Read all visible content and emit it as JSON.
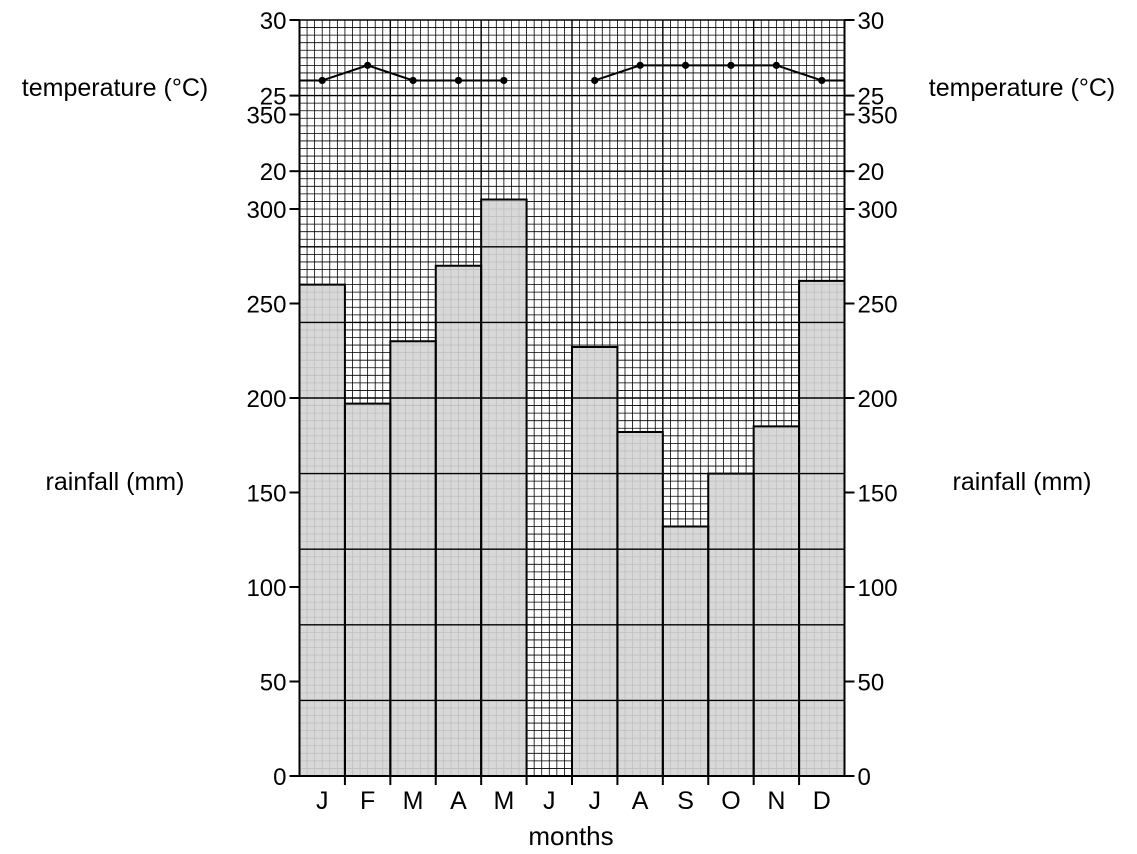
{
  "chart_data": {
    "type": "bar",
    "categories": [
      "J",
      "F",
      "M",
      "A",
      "M",
      "J",
      "J",
      "A",
      "S",
      "O",
      "N",
      "D"
    ],
    "xlabel": "months",
    "rainfall": {
      "label": "rainfall (mm)",
      "values": [
        260,
        197,
        230,
        270,
        305,
        null,
        227,
        182,
        132,
        160,
        185,
        262
      ],
      "ylim": [
        0,
        400
      ],
      "ticks": [
        0,
        50,
        100,
        150,
        200,
        250,
        300,
        350
      ]
    },
    "temperature": {
      "label": "temperature (°C)",
      "values": [
        26,
        27,
        26,
        26,
        26,
        null,
        26,
        27,
        27,
        27,
        27,
        26
      ],
      "ylim": [
        20,
        30
      ],
      "ticks": [
        20,
        25,
        30
      ]
    },
    "colors": {
      "bar_fill": "#d4d4d4",
      "grid": "#000000"
    },
    "grid": true
  }
}
